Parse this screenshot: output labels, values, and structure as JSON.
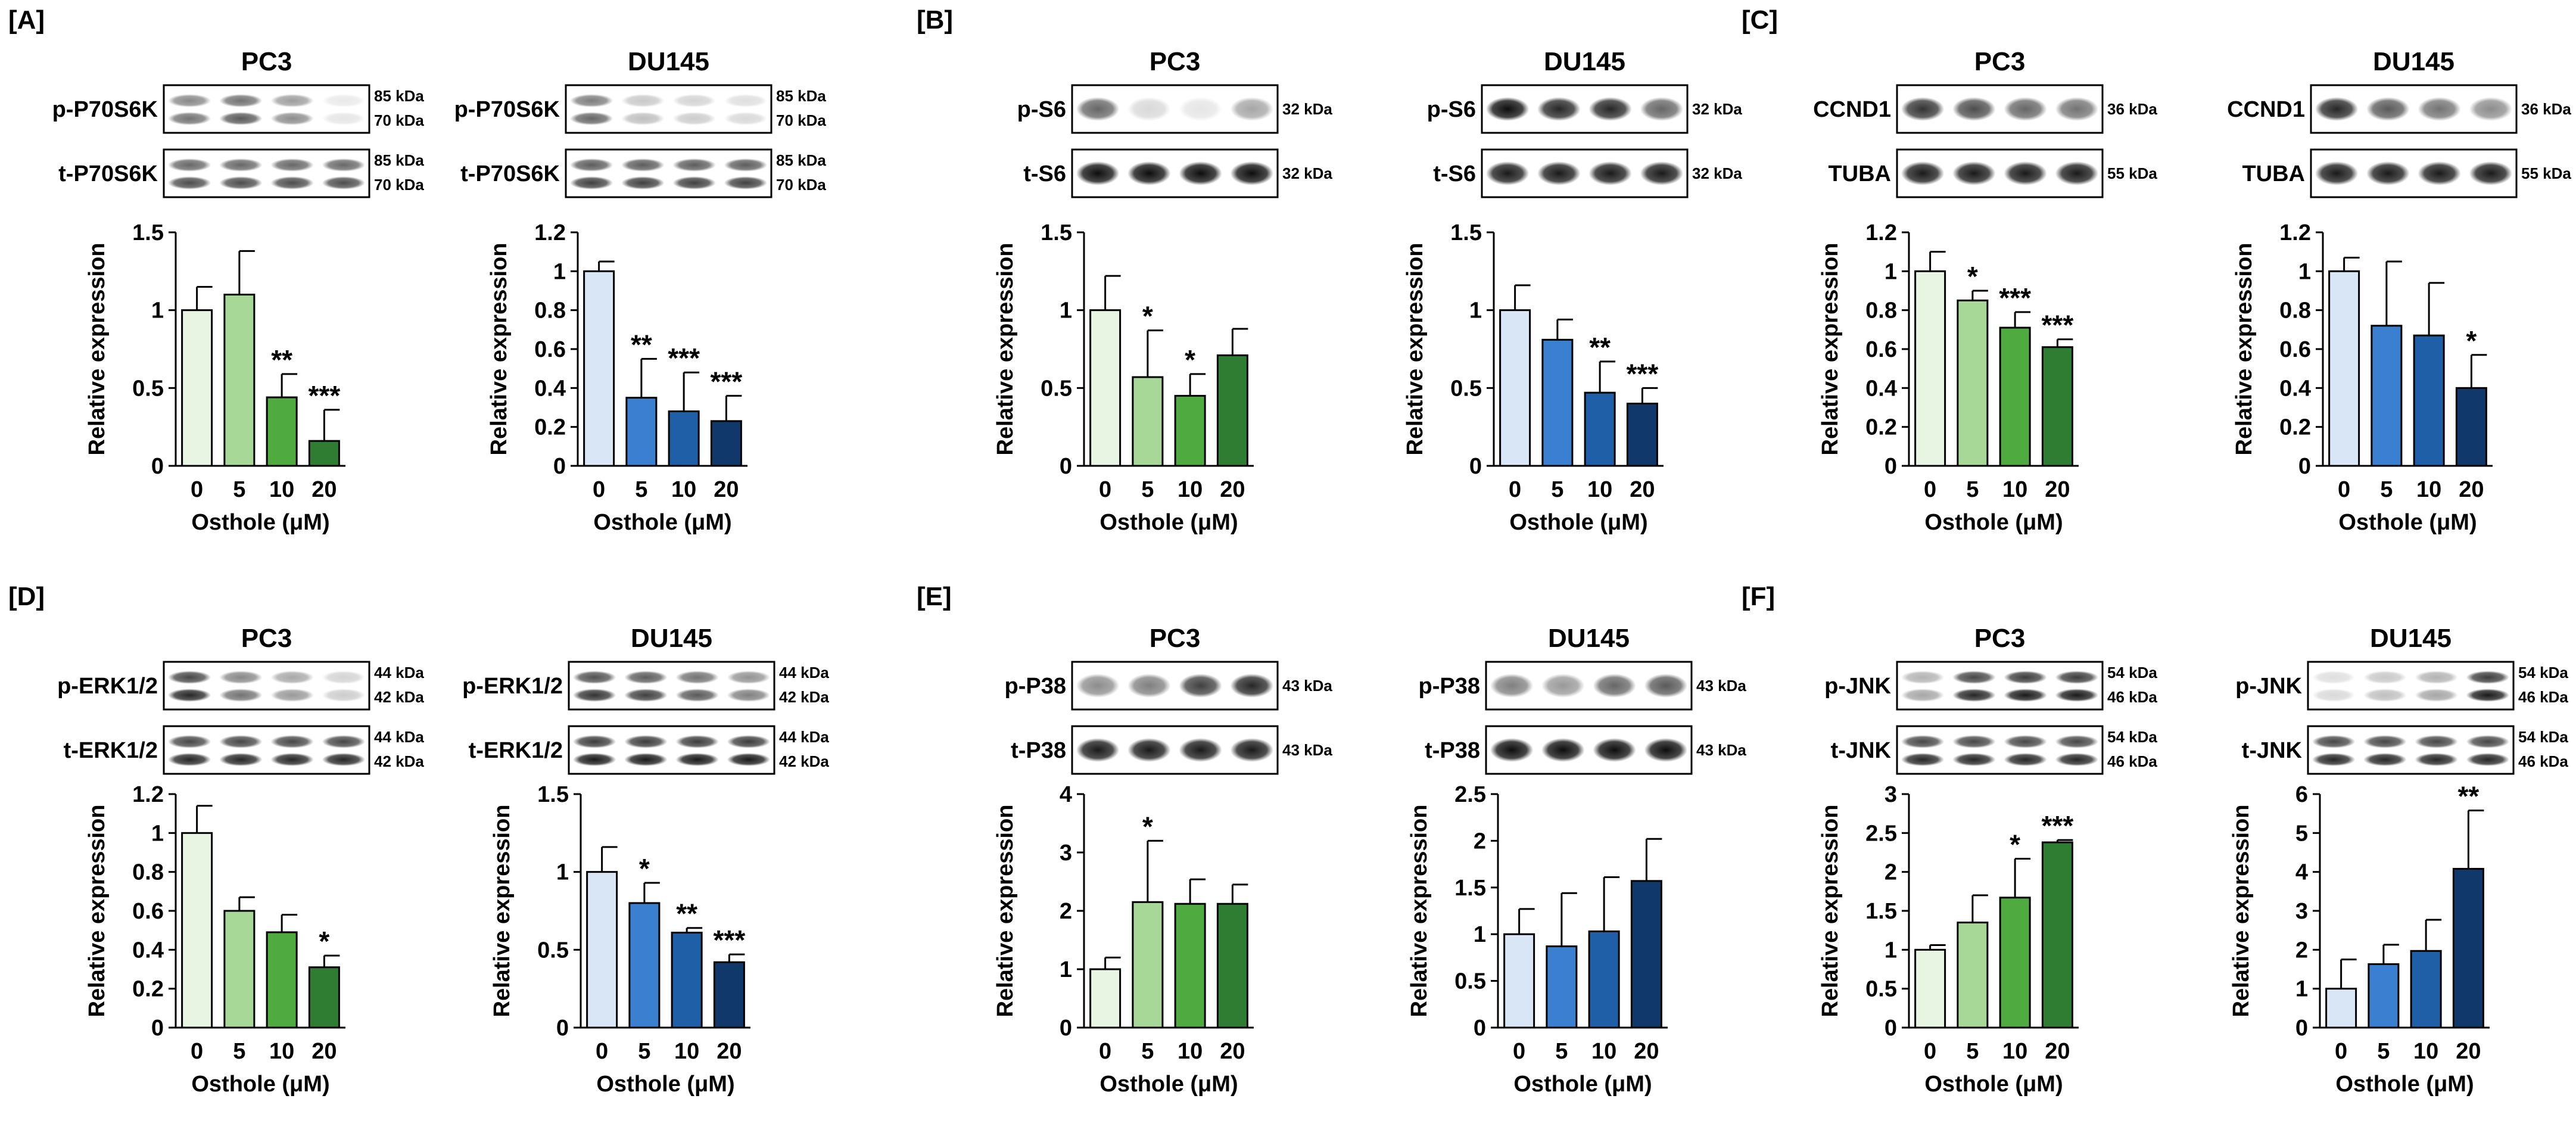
{
  "panels": [
    {
      "label": "[A]",
      "charts": [
        {
          "cell": "PC3",
          "palette": "green",
          "blots": [
            {
              "name": "p-P70S6K",
              "kda": [
                "85 kDa",
                "70 kDa"
              ],
              "bands": [
                0.55,
                0.65,
                0.45,
                0.1
              ],
              "double": true
            },
            {
              "name": "t-P70S6K",
              "kda": [
                "85 kDa",
                "70 kDa"
              ],
              "bands": [
                0.7,
                0.7,
                0.7,
                0.7
              ],
              "double": true
            }
          ]
        },
        {
          "cell": "DU145",
          "palette": "blue",
          "blots": [
            {
              "name": "p-P70S6K",
              "kda": [
                "85 kDa",
                "70 kDa"
              ],
              "bands": [
                0.6,
                0.25,
                0.2,
                0.15
              ],
              "double": true
            },
            {
              "name": "t-P70S6K",
              "kda": [
                "85 kDa",
                "70 kDa"
              ],
              "bands": [
                0.75,
                0.75,
                0.75,
                0.75
              ],
              "double": true
            }
          ]
        }
      ]
    },
    {
      "label": "[B]",
      "charts": [
        {
          "cell": "PC3",
          "palette": "green",
          "blots": [
            {
              "name": "p-S6",
              "kda": [
                "32 kDa"
              ],
              "bands": [
                0.6,
                0.15,
                0.1,
                0.35
              ],
              "double": false
            },
            {
              "name": "t-S6",
              "kda": [
                "32 kDa"
              ],
              "bands": [
                0.95,
                0.95,
                0.95,
                0.95
              ],
              "double": false
            }
          ]
        },
        {
          "cell": "DU145",
          "palette": "blue",
          "blots": [
            {
              "name": "p-S6",
              "kda": [
                "32 kDa"
              ],
              "bands": [
                0.95,
                0.85,
                0.85,
                0.6
              ],
              "double": false
            },
            {
              "name": "t-S6",
              "kda": [
                "32 kDa"
              ],
              "bands": [
                0.9,
                0.9,
                0.9,
                0.9
              ],
              "double": false
            }
          ]
        }
      ]
    },
    {
      "label": "[C]",
      "charts": [
        {
          "cell": "PC3",
          "palette": "green",
          "blots": [
            {
              "name": "CCND1",
              "kda": [
                "36 kDa"
              ],
              "bands": [
                0.8,
                0.7,
                0.6,
                0.55
              ],
              "double": false
            },
            {
              "name": "TUBA",
              "kda": [
                "55 kDa"
              ],
              "bands": [
                0.9,
                0.9,
                0.9,
                0.9
              ],
              "double": false
            }
          ]
        },
        {
          "cell": "DU145",
          "palette": "blue",
          "blots": [
            {
              "name": "CCND1",
              "kda": [
                "36 kDa"
              ],
              "bands": [
                0.85,
                0.65,
                0.55,
                0.45
              ],
              "double": false
            },
            {
              "name": "TUBA",
              "kda": [
                "55 kDa"
              ],
              "bands": [
                0.9,
                0.9,
                0.9,
                0.9
              ],
              "double": false
            }
          ]
        }
      ]
    },
    {
      "label": "[D]",
      "charts": [
        {
          "cell": "PC3",
          "palette": "green",
          "blots": [
            {
              "name": "p-ERK1/2",
              "kda": [
                "44 kDa",
                "42 kDa"
              ],
              "bands": [
                0.85,
                0.55,
                0.4,
                0.2
              ],
              "double": true
            },
            {
              "name": "t-ERK1/2",
              "kda": [
                "44 kDa",
                "42 kDa"
              ],
              "bands": [
                0.85,
                0.85,
                0.85,
                0.85
              ],
              "double": true
            }
          ]
        },
        {
          "cell": "DU145",
          "palette": "blue",
          "blots": [
            {
              "name": "p-ERK1/2",
              "kda": [
                "44 kDa",
                "42 kDa"
              ],
              "bands": [
                0.8,
                0.75,
                0.65,
                0.5
              ],
              "double": true
            },
            {
              "name": "t-ERK1/2",
              "kda": [
                "44 kDa",
                "42 kDa"
              ],
              "bands": [
                0.9,
                0.9,
                0.9,
                0.9
              ],
              "double": true
            }
          ]
        }
      ]
    },
    {
      "label": "[E]",
      "charts": [
        {
          "cell": "PC3",
          "palette": "green",
          "blots": [
            {
              "name": "p-P38",
              "kda": [
                "43 kDa"
              ],
              "bands": [
                0.45,
                0.5,
                0.75,
                0.85
              ],
              "double": false
            },
            {
              "name": "t-P38",
              "kda": [
                "43 kDa"
              ],
              "bands": [
                0.9,
                0.9,
                0.9,
                0.9
              ],
              "double": false
            }
          ]
        },
        {
          "cell": "DU145",
          "palette": "blue",
          "blots": [
            {
              "name": "p-P38",
              "kda": [
                "43 kDa"
              ],
              "bands": [
                0.5,
                0.4,
                0.6,
                0.65
              ],
              "double": false
            },
            {
              "name": "t-P38",
              "kda": [
                "43 kDa"
              ],
              "bands": [
                0.95,
                0.95,
                0.95,
                0.95
              ],
              "double": false
            }
          ]
        }
      ]
    },
    {
      "label": "[F]",
      "charts": [
        {
          "cell": "PC3",
          "palette": "green",
          "blots": [
            {
              "name": "p-JNK",
              "kda": [
                "54 kDa",
                "46 kDa"
              ],
              "bands": [
                0.35,
                0.85,
                0.9,
                0.9
              ],
              "double": true
            },
            {
              "name": "t-JNK",
              "kda": [
                "54 kDa",
                "46 kDa"
              ],
              "bands": [
                0.85,
                0.85,
                0.85,
                0.85
              ],
              "double": true
            }
          ]
        },
        {
          "cell": "DU145",
          "palette": "blue",
          "blots": [
            {
              "name": "p-JNK",
              "kda": [
                "54 kDa",
                "46 kDa"
              ],
              "bands": [
                0.15,
                0.25,
                0.35,
                0.9
              ],
              "double": true
            },
            {
              "name": "t-JNK",
              "kda": [
                "54 kDa",
                "46 kDa"
              ],
              "bands": [
                0.85,
                0.85,
                0.85,
                0.85
              ],
              "double": true
            }
          ]
        }
      ]
    }
  ],
  "palettes": {
    "green": [
      "#e8f5e2",
      "#a8d898",
      "#4faa3f",
      "#2e7d32"
    ],
    "blue": [
      "#d8e6f5",
      "#3a7fd0",
      "#1f5fa8",
      "#10386b"
    ]
  },
  "chart_data": [
    {
      "type": "bar",
      "panel": "[A]",
      "title": "PC3",
      "categories": [
        "0",
        "5",
        "10",
        "20"
      ],
      "values": [
        1.0,
        1.1,
        0.44,
        0.16
      ],
      "errors": [
        0.15,
        0.28,
        0.15,
        0.2
      ],
      "significance": [
        "",
        "",
        "**",
        "***"
      ],
      "ylim": [
        0,
        1.5
      ],
      "yticks": [
        0,
        0.5,
        1,
        1.5
      ],
      "ytick_labels": [
        "0",
        "0.5",
        "1",
        "1.5"
      ],
      "xlabel": "Osthole (μM)",
      "ylabel": "Relative expression"
    },
    {
      "type": "bar",
      "panel": "[A]",
      "title": "DU145",
      "categories": [
        "0",
        "5",
        "10",
        "20"
      ],
      "values": [
        1.0,
        0.35,
        0.28,
        0.23
      ],
      "errors": [
        0.05,
        0.2,
        0.2,
        0.13
      ],
      "significance": [
        "",
        "**",
        "***",
        "***"
      ],
      "ylim": [
        0,
        1.2
      ],
      "yticks": [
        0,
        0.2,
        0.4,
        0.6,
        0.8,
        1,
        1.2
      ],
      "ytick_labels": [
        "0",
        "0.2",
        "0.4",
        "0.6",
        "0.8",
        "1",
        "1.2"
      ],
      "xlabel": "Osthole (μM)",
      "ylabel": "Relative expression"
    },
    {
      "type": "bar",
      "panel": "[B]",
      "title": "PC3",
      "categories": [
        "0",
        "5",
        "10",
        "20"
      ],
      "values": [
        1.0,
        0.57,
        0.45,
        0.71
      ],
      "errors": [
        0.22,
        0.3,
        0.14,
        0.17
      ],
      "significance": [
        "",
        "*",
        "*",
        ""
      ],
      "ylim": [
        0,
        1.5
      ],
      "yticks": [
        0,
        0.5,
        1,
        1.5
      ],
      "ytick_labels": [
        "0",
        "0.5",
        "1",
        "1.5"
      ],
      "xlabel": "Osthole (μM)",
      "ylabel": "Relative expression"
    },
    {
      "type": "bar",
      "panel": "[B]",
      "title": "DU145",
      "categories": [
        "0",
        "5",
        "10",
        "20"
      ],
      "values": [
        1.0,
        0.81,
        0.47,
        0.4
      ],
      "errors": [
        0.16,
        0.13,
        0.2,
        0.1
      ],
      "significance": [
        "",
        "",
        "**",
        "***"
      ],
      "ylim": [
        0,
        1.5
      ],
      "yticks": [
        0,
        0.5,
        1,
        1.5
      ],
      "ytick_labels": [
        "0",
        "0.5",
        "1",
        "1.5"
      ],
      "xlabel": "Osthole (μM)",
      "ylabel": "Relative expression"
    },
    {
      "type": "bar",
      "panel": "[C]",
      "title": "PC3",
      "categories": [
        "0",
        "5",
        "10",
        "20"
      ],
      "values": [
        1.0,
        0.85,
        0.71,
        0.61
      ],
      "errors": [
        0.1,
        0.05,
        0.08,
        0.04
      ],
      "significance": [
        "",
        "*",
        "***",
        "***"
      ],
      "ylim": [
        0,
        1.2
      ],
      "yticks": [
        0,
        0.2,
        0.4,
        0.6,
        0.8,
        1,
        1.2
      ],
      "ytick_labels": [
        "0",
        "0.2",
        "0.4",
        "0.6",
        "0.8",
        "1",
        "1.2"
      ],
      "xlabel": "Osthole (μM)",
      "ylabel": "Relative expression"
    },
    {
      "type": "bar",
      "panel": "[C]",
      "title": "DU145",
      "categories": [
        "0",
        "5",
        "10",
        "20"
      ],
      "values": [
        1.0,
        0.72,
        0.67,
        0.4
      ],
      "errors": [
        0.07,
        0.33,
        0.27,
        0.17
      ],
      "significance": [
        "",
        "",
        "",
        "*"
      ],
      "ylim": [
        0,
        1.2
      ],
      "yticks": [
        0,
        0.2,
        0.4,
        0.6,
        0.8,
        1,
        1.2
      ],
      "ytick_labels": [
        "0",
        "0.2",
        "0.4",
        "0.6",
        "0.8",
        "1",
        "1.2"
      ],
      "xlabel": "Osthole (μM)",
      "ylabel": "Relative expression"
    },
    {
      "type": "bar",
      "panel": "[D]",
      "title": "PC3",
      "categories": [
        "0",
        "5",
        "10",
        "20"
      ],
      "values": [
        1.0,
        0.6,
        0.49,
        0.31
      ],
      "errors": [
        0.14,
        0.07,
        0.09,
        0.06
      ],
      "significance": [
        "",
        "",
        "",
        "*"
      ],
      "ylim": [
        0,
        1.2
      ],
      "yticks": [
        0,
        0.2,
        0.4,
        0.6,
        0.8,
        1,
        1.2
      ],
      "ytick_labels": [
        "0",
        "0.2",
        "0.4",
        "0.6",
        "0.8",
        "1",
        "1.2"
      ],
      "xlabel": "Osthole (μM)",
      "ylabel": "Relative expression"
    },
    {
      "type": "bar",
      "panel": "[D]",
      "title": "DU145",
      "categories": [
        "0",
        "5",
        "10",
        "20"
      ],
      "values": [
        1.0,
        0.8,
        0.61,
        0.42
      ],
      "errors": [
        0.16,
        0.13,
        0.03,
        0.05
      ],
      "significance": [
        "",
        "*",
        "**",
        "***"
      ],
      "ylim": [
        0,
        1.5
      ],
      "yticks": [
        0,
        0.5,
        1,
        1.5
      ],
      "ytick_labels": [
        "0",
        "0.5",
        "1",
        "1.5"
      ],
      "xlabel": "Osthole (μM)",
      "ylabel": "Relative expression"
    },
    {
      "type": "bar",
      "panel": "[E]",
      "title": "PC3",
      "categories": [
        "0",
        "5",
        "10",
        "20"
      ],
      "values": [
        1.0,
        2.15,
        2.12,
        2.12
      ],
      "errors": [
        0.2,
        1.05,
        0.42,
        0.33
      ],
      "significance": [
        "",
        "*",
        "",
        ""
      ],
      "ylim": [
        0,
        4
      ],
      "yticks": [
        0,
        1,
        2,
        3,
        4
      ],
      "ytick_labels": [
        "0",
        "1",
        "2",
        "3",
        "4"
      ],
      "xlabel": "Osthole (μM)",
      "ylabel": "Relative expression"
    },
    {
      "type": "bar",
      "panel": "[E]",
      "title": "DU145",
      "categories": [
        "0",
        "5",
        "10",
        "20"
      ],
      "values": [
        1.0,
        0.87,
        1.03,
        1.57
      ],
      "errors": [
        0.27,
        0.57,
        0.58,
        0.45
      ],
      "significance": [
        "",
        "",
        "",
        ""
      ],
      "ylim": [
        0,
        2.5
      ],
      "yticks": [
        0,
        0.5,
        1,
        1.5,
        2,
        2.5
      ],
      "ytick_labels": [
        "0",
        "0.5",
        "1",
        "1.5",
        "2",
        "2.5"
      ],
      "xlabel": "Osthole (μM)",
      "ylabel": "Relative expression"
    },
    {
      "type": "bar",
      "panel": "[F]",
      "title": "PC3",
      "categories": [
        "0",
        "5",
        "10",
        "20"
      ],
      "values": [
        1.0,
        1.35,
        1.67,
        2.38
      ],
      "errors": [
        0.06,
        0.35,
        0.5,
        0.03
      ],
      "significance": [
        "",
        "",
        "*",
        "***"
      ],
      "ylim": [
        0,
        3
      ],
      "yticks": [
        0,
        0.5,
        1,
        1.5,
        2,
        2.5,
        3
      ],
      "ytick_labels": [
        "0",
        "0.5",
        "1",
        "1.5",
        "2",
        "2.5",
        "3"
      ],
      "xlabel": "Osthole (μM)",
      "ylabel": "Relative expression"
    },
    {
      "type": "bar",
      "panel": "[F]",
      "title": "DU145",
      "categories": [
        "0",
        "5",
        "10",
        "20"
      ],
      "values": [
        1.0,
        1.63,
        1.97,
        4.08
      ],
      "errors": [
        0.75,
        0.5,
        0.8,
        1.5
      ],
      "significance": [
        "",
        "",
        "",
        "**"
      ],
      "ylim": [
        0,
        6
      ],
      "yticks": [
        0,
        1,
        2,
        3,
        4,
        5,
        6
      ],
      "ytick_labels": [
        "0",
        "1",
        "2",
        "3",
        "4",
        "5",
        "6"
      ],
      "xlabel": "Osthole (μM)",
      "ylabel": "Relative expression"
    }
  ]
}
